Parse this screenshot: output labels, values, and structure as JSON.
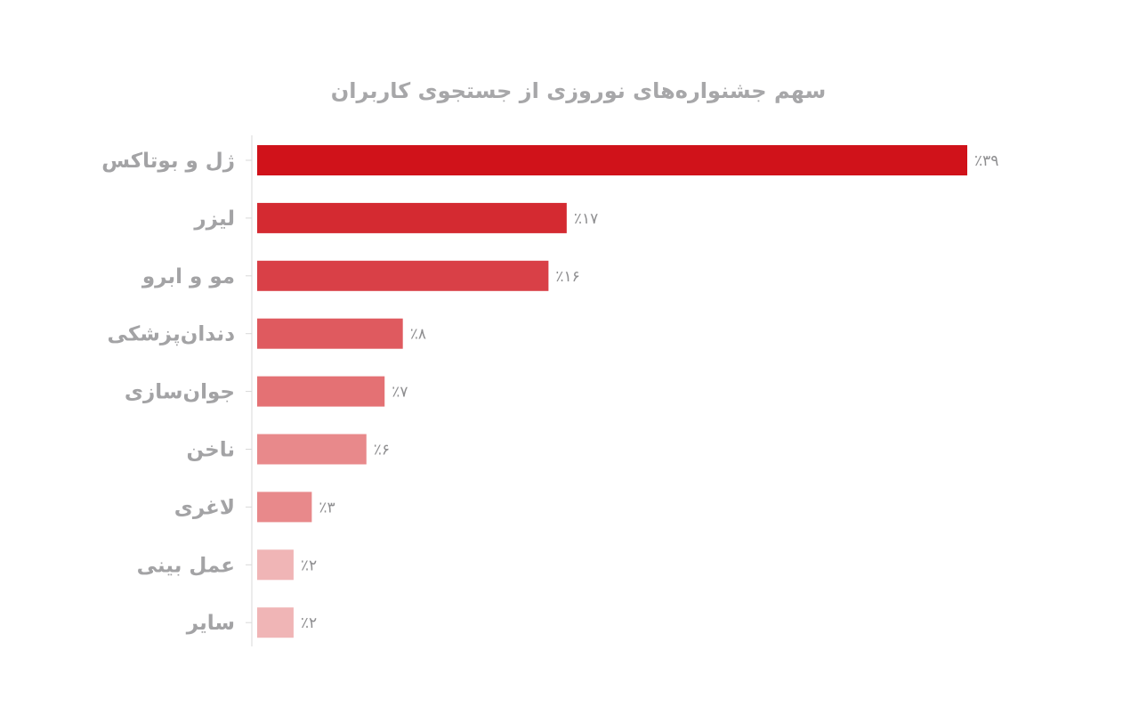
{
  "chart_data": {
    "type": "bar",
    "orientation": "horizontal",
    "title": "سهم جشنواره‌های  نوروزی از جستجوی کاربران",
    "categories": [
      "ژل و بوتاکس",
      "لیزر",
      "مو و ابرو",
      "دندان‌پزشکی",
      "جوان‌سازی",
      "ناخن",
      "لاغری",
      "عمل بینی",
      "سایر"
    ],
    "values": [
      39,
      17,
      16,
      8,
      7,
      6,
      3,
      2,
      2
    ],
    "value_labels": [
      "٪۳۹",
      "٪۱۷",
      "٪۱۶",
      "٪۸",
      "٪۷",
      "٪۶",
      "٪۳",
      "٪۲",
      "٪۲"
    ],
    "unit": "%",
    "colors": [
      "#d0121a",
      "#d42a31",
      "#d94047",
      "#df5a5f",
      "#e47174",
      "#e8898b",
      "#e8898b",
      "#f0b5b6",
      "#f0b5b6"
    ],
    "xlim": [
      0,
      39
    ],
    "grid": false,
    "legend": "none"
  }
}
